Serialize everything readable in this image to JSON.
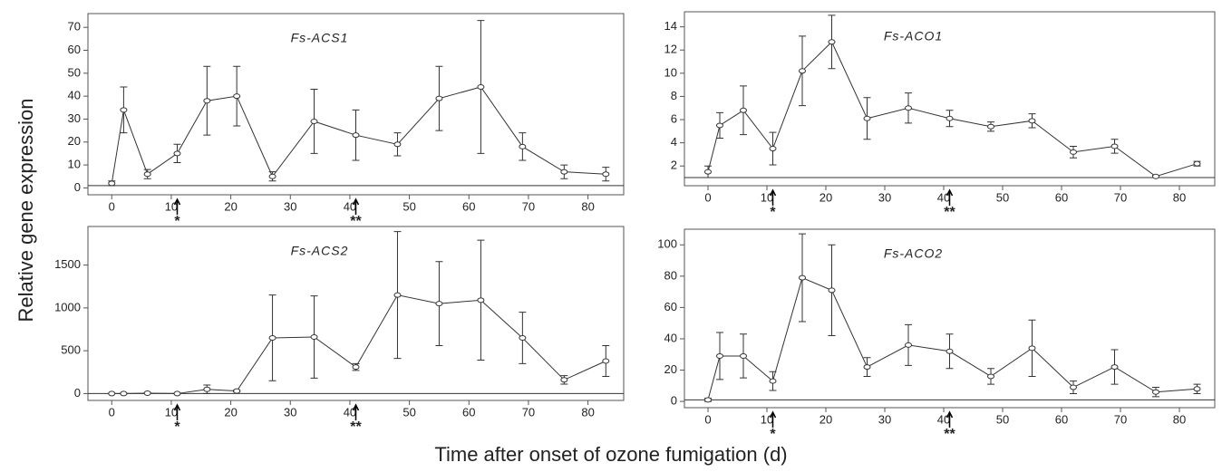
{
  "ylabel": "Relative gene expression",
  "xlabel": "Time after onset of ozone fumigation (d)",
  "chart_data": [
    {
      "type": "line",
      "title": "Fs-ACS1",
      "x": [
        0,
        2,
        6,
        11,
        16,
        21,
        27,
        34,
        41,
        48,
        55,
        62,
        69,
        76,
        83
      ],
      "values": [
        2,
        34,
        6,
        15,
        38,
        40,
        5,
        29,
        23,
        19,
        39,
        44,
        18,
        7,
        6
      ],
      "errors": [
        1,
        10,
        2,
        4,
        15,
        13,
        2,
        14,
        11,
        5,
        14,
        29,
        6,
        3,
        3
      ],
      "baseline": 1,
      "color": "#333333",
      "xlim": [
        -4,
        86
      ],
      "xticks": [
        0,
        10,
        20,
        30,
        40,
        50,
        60,
        70,
        80
      ],
      "ylim": [
        -3,
        76
      ],
      "yticks": [
        0,
        10,
        20,
        30,
        40,
        50,
        60,
        70
      ],
      "markers": [
        {
          "x": 11,
          "label": "*"
        },
        {
          "x": 41,
          "label": "**"
        }
      ]
    },
    {
      "type": "line",
      "title": "Fs-ACO1",
      "x": [
        0,
        2,
        6,
        11,
        16,
        21,
        27,
        34,
        41,
        48,
        55,
        62,
        69,
        76,
        83
      ],
      "values": [
        1.5,
        5.5,
        6.8,
        3.5,
        10.2,
        12.7,
        6.1,
        7,
        6.1,
        5.4,
        5.9,
        3.2,
        3.7,
        1.1,
        2.2
      ],
      "errors": [
        0.5,
        1.1,
        2.1,
        1.4,
        3,
        2.3,
        1.8,
        1.3,
        0.7,
        0.4,
        0.6,
        0.5,
        0.6,
        0.1,
        0.2
      ],
      "baseline": 1,
      "color": "#333333",
      "xlim": [
        -4,
        86
      ],
      "xticks": [
        0,
        10,
        20,
        30,
        40,
        50,
        60,
        70,
        80
      ],
      "ylim": [
        0.3,
        15.3
      ],
      "yticks": [
        2,
        4,
        6,
        8,
        10,
        12,
        14
      ],
      "markers": [
        {
          "x": 11,
          "label": "*"
        },
        {
          "x": 41,
          "label": "**"
        }
      ]
    },
    {
      "type": "line",
      "title": "Fs-ACS2",
      "x": [
        0,
        2,
        6,
        11,
        16,
        21,
        27,
        34,
        41,
        48,
        55,
        62,
        69,
        76,
        83
      ],
      "values": [
        0,
        0,
        5,
        0,
        50,
        30,
        650,
        660,
        310,
        1150,
        1050,
        1090,
        650,
        160,
        380
      ],
      "errors": [
        0,
        5,
        5,
        5,
        50,
        10,
        500,
        480,
        40,
        740,
        490,
        700,
        300,
        50,
        180
      ],
      "baseline": 1,
      "color": "#333333",
      "xlim": [
        -4,
        86
      ],
      "xticks": [
        0,
        10,
        20,
        30,
        40,
        50,
        60,
        70,
        80
      ],
      "ylim": [
        -80,
        1950
      ],
      "yticks": [
        0,
        500,
        1000,
        1500
      ],
      "markers": [
        {
          "x": 11,
          "label": "*"
        },
        {
          "x": 41,
          "label": "**"
        }
      ]
    },
    {
      "type": "line",
      "title": "Fs-ACO2",
      "x": [
        0,
        2,
        6,
        11,
        16,
        21,
        27,
        34,
        41,
        48,
        55,
        62,
        69,
        76,
        83
      ],
      "values": [
        1,
        29,
        29,
        13,
        79,
        71,
        22,
        36,
        32,
        16,
        34,
        9,
        22,
        6,
        8
      ],
      "errors": [
        1,
        15,
        14,
        6,
        28,
        29,
        6,
        13,
        11,
        5,
        18,
        4,
        11,
        3,
        3
      ],
      "baseline": 1,
      "color": "#333333",
      "xlim": [
        -4,
        86
      ],
      "xticks": [
        0,
        10,
        20,
        30,
        40,
        50,
        60,
        70,
        80
      ],
      "ylim": [
        -4,
        110
      ],
      "yticks": [
        0,
        20,
        40,
        60,
        80,
        100
      ],
      "markers": [
        {
          "x": 11,
          "label": "*"
        },
        {
          "x": 41,
          "label": "**"
        }
      ]
    }
  ]
}
